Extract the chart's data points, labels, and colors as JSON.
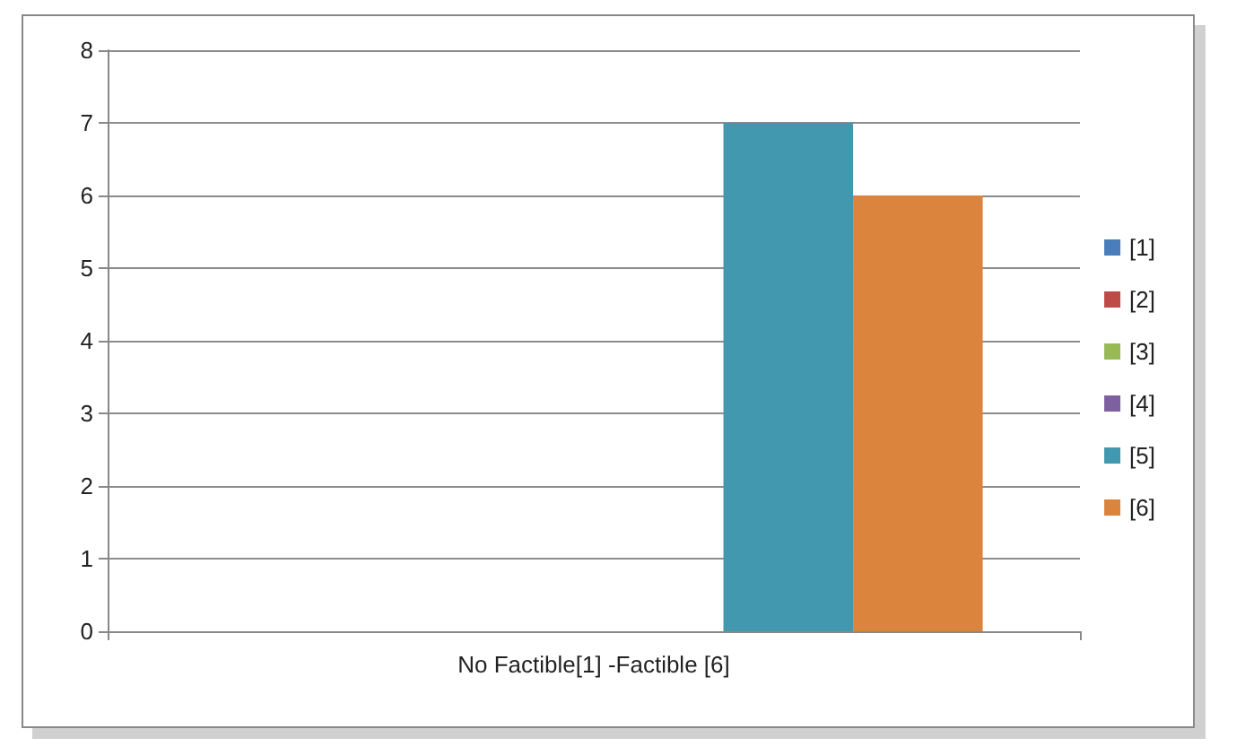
{
  "chart_data": {
    "type": "bar",
    "categories": [
      "No Factible[1] -Factible [6]"
    ],
    "series": [
      {
        "name": "[1]",
        "color": "#4a7ebb",
        "values": [
          0
        ]
      },
      {
        "name": "[2]",
        "color": "#be4b48",
        "values": [
          0
        ]
      },
      {
        "name": "[3]",
        "color": "#98b954",
        "values": [
          0
        ]
      },
      {
        "name": "[4]",
        "color": "#7d60a0",
        "values": [
          0
        ]
      },
      {
        "name": "[5]",
        "color": "#4198af",
        "values": [
          7
        ]
      },
      {
        "name": "[6]",
        "color": "#db843d",
        "values": [
          6
        ]
      }
    ],
    "ylim": [
      0,
      8
    ],
    "yticks": [
      0,
      1,
      2,
      3,
      4,
      5,
      6,
      7,
      8
    ],
    "grid": "y",
    "legend": "right"
  }
}
